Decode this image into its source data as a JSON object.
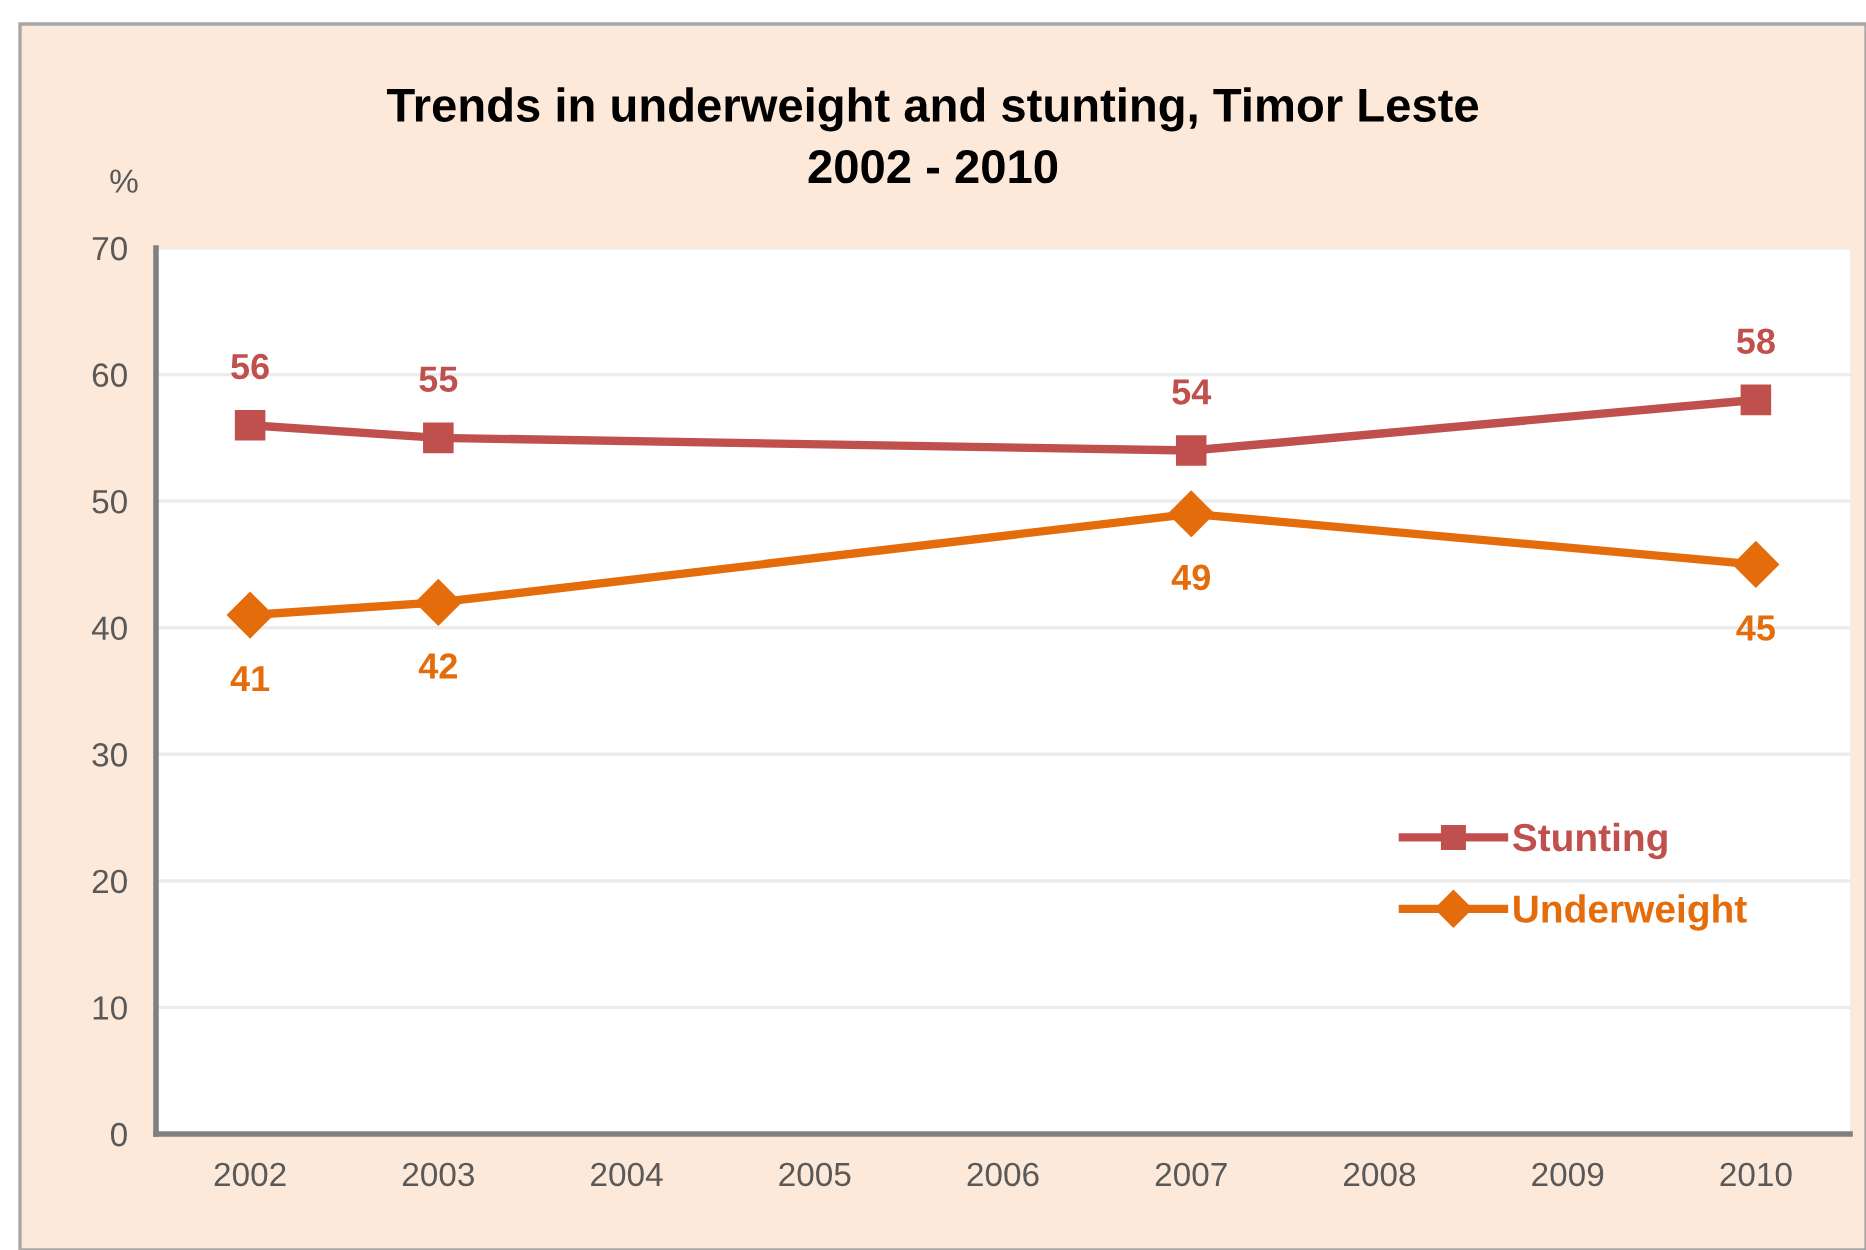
{
  "chart_data": {
    "type": "line",
    "title": "Trends in underweight and stunting, Timor Leste\n2002 - 2010",
    "ylabel": "%",
    "xlim": [
      2001.5,
      2010.5
    ],
    "xticks": [
      2002,
      2003,
      2004,
      2005,
      2006,
      2007,
      2008,
      2009,
      2010
    ],
    "ylim": [
      0,
      70
    ],
    "yticks": [
      0,
      10,
      20,
      30,
      40,
      50,
      60,
      70
    ],
    "grid": "y",
    "legend": "lower right",
    "data_labels": true,
    "series": [
      {
        "name": "Stunting",
        "color": "#c0504d",
        "marker": "square",
        "x": [
          2002,
          2003,
          2007,
          2010
        ],
        "values": [
          56,
          55,
          54,
          58
        ]
      },
      {
        "name": "Underweight",
        "color": "#e46c0a",
        "marker": "diamond",
        "x": [
          2002,
          2003,
          2007,
          2010
        ],
        "values": [
          41,
          42,
          49,
          45
        ]
      }
    ]
  }
}
